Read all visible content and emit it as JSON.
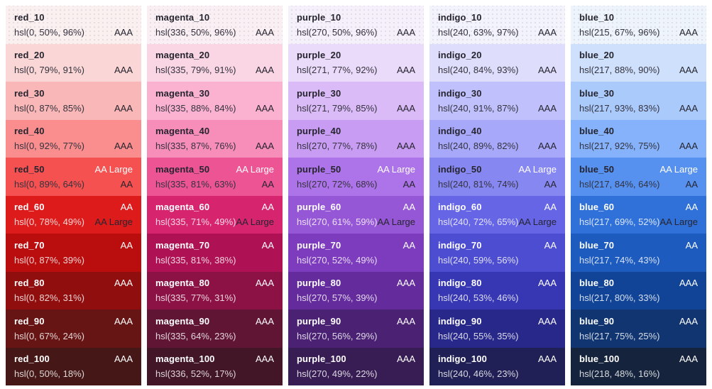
{
  "page": {
    "background": "#ffffff",
    "text_dark": "#26252f",
    "text_light": "#ffffff"
  },
  "columns": [
    {
      "name": "red",
      "swatches": [
        {
          "name": "red_10",
          "hsl": "hsl(0, 50%, 96%)",
          "badge_light": "",
          "badge_dark": "AAA"
        },
        {
          "name": "red_20",
          "hsl": "hsl(0, 79%, 91%)",
          "badge_light": "",
          "badge_dark": "AAA"
        },
        {
          "name": "red_30",
          "hsl": "hsl(0, 87%, 85%)",
          "badge_light": "",
          "badge_dark": "AAA"
        },
        {
          "name": "red_40",
          "hsl": "hsl(0, 92%, 77%)",
          "badge_light": "",
          "badge_dark": "AAA"
        },
        {
          "name": "red_50",
          "hsl": "hsl(0, 89%, 64%)",
          "badge_light": "AA Large",
          "badge_dark": "AA"
        },
        {
          "name": "red_60",
          "hsl": "hsl(0, 78%, 49%)",
          "badge_light": "AA",
          "badge_dark": "AA Large"
        },
        {
          "name": "red_70",
          "hsl": "hsl(0, 87%, 39%)",
          "badge_light": "AA",
          "badge_dark": ""
        },
        {
          "name": "red_80",
          "hsl": "hsl(0, 82%, 31%)",
          "badge_light": "AAA",
          "badge_dark": ""
        },
        {
          "name": "red_90",
          "hsl": "hsl(0, 67%, 24%)",
          "badge_light": "AAA",
          "badge_dark": ""
        },
        {
          "name": "red_100",
          "hsl": "hsl(0, 50%, 18%)",
          "badge_light": "AAA",
          "badge_dark": ""
        }
      ]
    },
    {
      "name": "magenta",
      "swatches": [
        {
          "name": "magenta_10",
          "hsl": "hsl(336, 50%, 96%)",
          "badge_light": "",
          "badge_dark": "AAA"
        },
        {
          "name": "magenta_20",
          "hsl": "hsl(335, 79%, 91%)",
          "badge_light": "",
          "badge_dark": "AAA"
        },
        {
          "name": "magenta_30",
          "hsl": "hsl(335, 88%, 84%)",
          "badge_light": "",
          "badge_dark": "AAA"
        },
        {
          "name": "magenta_40",
          "hsl": "hsl(335, 87%, 76%)",
          "badge_light": "",
          "badge_dark": "AAA"
        },
        {
          "name": "magenta_50",
          "hsl": "hsl(335, 81%, 63%)",
          "badge_light": "AA Large",
          "badge_dark": "AA"
        },
        {
          "name": "magenta_60",
          "hsl": "hsl(335, 71%, 49%)",
          "badge_light": "AA",
          "badge_dark": "AA Large"
        },
        {
          "name": "magenta_70",
          "hsl": "hsl(335, 81%, 38%)",
          "badge_light": "AA",
          "badge_dark": ""
        },
        {
          "name": "magenta_80",
          "hsl": "hsl(335, 77%, 31%)",
          "badge_light": "AAA",
          "badge_dark": ""
        },
        {
          "name": "magenta_90",
          "hsl": "hsl(335, 64%, 23%)",
          "badge_light": "AAA",
          "badge_dark": ""
        },
        {
          "name": "magenta_100",
          "hsl": "hsl(336, 52%, 17%)",
          "badge_light": "AAA",
          "badge_dark": ""
        }
      ]
    },
    {
      "name": "purple",
      "swatches": [
        {
          "name": "purple_10",
          "hsl": "hsl(270, 50%, 96%)",
          "badge_light": "",
          "badge_dark": "AAA"
        },
        {
          "name": "purple_20",
          "hsl": "hsl(271, 77%, 92%)",
          "badge_light": "",
          "badge_dark": "AAA"
        },
        {
          "name": "purple_30",
          "hsl": "hsl(271, 79%, 85%)",
          "badge_light": "",
          "badge_dark": "AAA"
        },
        {
          "name": "purple_40",
          "hsl": "hsl(270, 77%, 78%)",
          "badge_light": "",
          "badge_dark": "AAA"
        },
        {
          "name": "purple_50",
          "hsl": "hsl(270, 72%, 68%)",
          "badge_light": "AA Large",
          "badge_dark": "AA"
        },
        {
          "name": "purple_60",
          "hsl": "hsl(270, 61%, 59%)",
          "badge_light": "AA",
          "badge_dark": "AA Large"
        },
        {
          "name": "purple_70",
          "hsl": "hsl(270, 52%, 49%)",
          "badge_light": "AA",
          "badge_dark": ""
        },
        {
          "name": "purple_80",
          "hsl": "hsl(270, 57%, 39%)",
          "badge_light": "AAA",
          "badge_dark": ""
        },
        {
          "name": "purple_90",
          "hsl": "hsl(270, 56%, 29%)",
          "badge_light": "AAA",
          "badge_dark": ""
        },
        {
          "name": "purple_100",
          "hsl": "hsl(270, 49%, 22%)",
          "badge_light": "AAA",
          "badge_dark": ""
        }
      ]
    },
    {
      "name": "indigo",
      "swatches": [
        {
          "name": "indigo_10",
          "hsl": "hsl(240, 63%, 97%)",
          "badge_light": "",
          "badge_dark": "AAA"
        },
        {
          "name": "indigo_20",
          "hsl": "hsl(240, 84%, 93%)",
          "badge_light": "",
          "badge_dark": "AAA"
        },
        {
          "name": "indigo_30",
          "hsl": "hsl(240, 91%, 87%)",
          "badge_light": "",
          "badge_dark": "AAA"
        },
        {
          "name": "indigo_40",
          "hsl": "hsl(240, 89%, 82%)",
          "badge_light": "",
          "badge_dark": "AAA"
        },
        {
          "name": "indigo_50",
          "hsl": "hsl(240, 81%, 74%)",
          "badge_light": "AA Large",
          "badge_dark": "AA"
        },
        {
          "name": "indigo_60",
          "hsl": "hsl(240, 72%, 65%)",
          "badge_light": "AA",
          "badge_dark": "AA Large"
        },
        {
          "name": "indigo_70",
          "hsl": "hsl(240, 59%, 56%)",
          "badge_light": "AA",
          "badge_dark": ""
        },
        {
          "name": "indigo_80",
          "hsl": "hsl(240, 53%, 46%)",
          "badge_light": "AAA",
          "badge_dark": ""
        },
        {
          "name": "indigo_90",
          "hsl": "hsl(240, 55%, 35%)",
          "badge_light": "AAA",
          "badge_dark": ""
        },
        {
          "name": "indigo_100",
          "hsl": "hsl(240, 46%, 23%)",
          "badge_light": "AAA",
          "badge_dark": ""
        }
      ]
    },
    {
      "name": "blue",
      "swatches": [
        {
          "name": "blue_10",
          "hsl": "hsl(215, 67%, 96%)",
          "badge_light": "",
          "badge_dark": "AAA"
        },
        {
          "name": "blue_20",
          "hsl": "hsl(217, 88%, 90%)",
          "badge_light": "",
          "badge_dark": "AAA"
        },
        {
          "name": "blue_30",
          "hsl": "hsl(217, 93%, 83%)",
          "badge_light": "",
          "badge_dark": "AAA"
        },
        {
          "name": "blue_40",
          "hsl": "hsl(217, 92%, 75%)",
          "badge_light": "",
          "badge_dark": "AAA"
        },
        {
          "name": "blue_50",
          "hsl": "hsl(217, 84%, 64%)",
          "badge_light": "AA Large",
          "badge_dark": "AA"
        },
        {
          "name": "blue_60",
          "hsl": "hsl(217, 69%, 52%)",
          "badge_light": "AA",
          "badge_dark": "AA Large"
        },
        {
          "name": "blue_70",
          "hsl": "hsl(217, 74%, 43%)",
          "badge_light": "AA",
          "badge_dark": ""
        },
        {
          "name": "blue_80",
          "hsl": "hsl(217, 80%, 33%)",
          "badge_light": "AAA",
          "badge_dark": ""
        },
        {
          "name": "blue_90",
          "hsl": "hsl(217, 75%, 25%)",
          "badge_light": "AAA",
          "badge_dark": ""
        },
        {
          "name": "blue_100",
          "hsl": "hsl(218, 48%, 16%)",
          "badge_light": "AAA",
          "badge_dark": ""
        }
      ]
    }
  ]
}
